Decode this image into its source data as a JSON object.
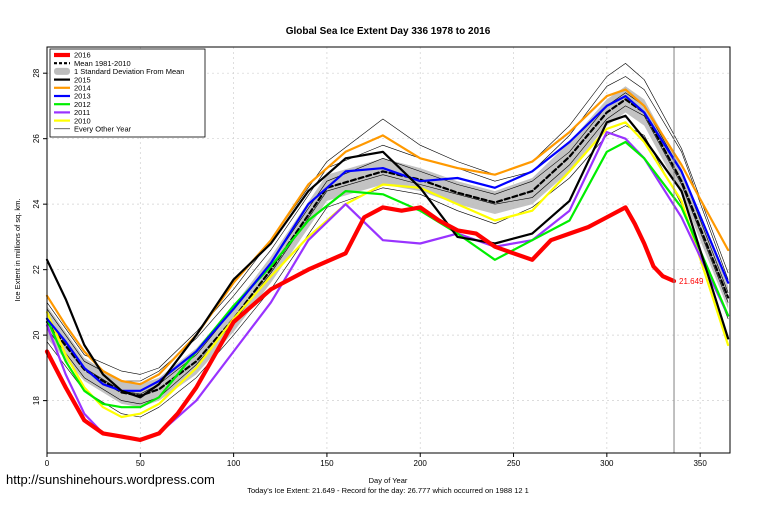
{
  "chart_data": {
    "type": "line",
    "title": "Global Sea Ice Extent Day 336 1978 to 2016",
    "xlabel": "Day of Year",
    "ylabel": "Ice Extent in millions of sq. km.",
    "xlim": [
      0,
      366
    ],
    "ylim": [
      16.4,
      28.8
    ],
    "x_ticks": [
      0,
      50,
      100,
      150,
      200,
      250,
      300,
      350
    ],
    "y_ticks": [
      18,
      20,
      22,
      24,
      26,
      28
    ],
    "grid": true,
    "current_day_marker": 336,
    "annotation": {
      "label": "21.649",
      "x": 336,
      "y": 21.649,
      "color": "#ff0000"
    },
    "footer": "Today's Ice Extent: 21.649  -  Record for the day: 26.777 which occurred on 1988 12 1",
    "watermark": "http://sunshinehours.wordpress.com",
    "legend_position": "top-left",
    "legend": [
      {
        "label": "2016",
        "color": "#ff0000",
        "style": "thick"
      },
      {
        "label": "Mean 1981-2010",
        "color": "#000000",
        "style": "dashed"
      },
      {
        "label": "1 Standard Deviation From Mean",
        "color": "#bdbdbd",
        "style": "band"
      },
      {
        "label": "2015",
        "color": "#000000",
        "style": "line"
      },
      {
        "label": "2014",
        "color": "#ff9900",
        "style": "line"
      },
      {
        "label": "2013",
        "color": "#0000ff",
        "style": "line"
      },
      {
        "label": "2012",
        "color": "#00ee00",
        "style": "line"
      },
      {
        "label": "2011",
        "color": "#9933ff",
        "style": "line"
      },
      {
        "label": "2010",
        "color": "#ffff00",
        "style": "line"
      },
      {
        "label": "Every Other Year",
        "color": "#000000",
        "style": "thin"
      }
    ],
    "band": {
      "x": [
        0,
        20,
        40,
        50,
        60,
        80,
        100,
        120,
        150,
        180,
        200,
        220,
        240,
        260,
        280,
        300,
        310,
        320,
        340,
        365
      ],
      "lower": [
        19.9,
        18.6,
        17.9,
        17.8,
        18.0,
        18.8,
        20.1,
        21.6,
        24.1,
        24.6,
        24.4,
        24.0,
        23.7,
        24.0,
        25.0,
        26.4,
        26.8,
        26.4,
        24.3,
        20.8
      ],
      "upper": [
        20.9,
        19.3,
        18.6,
        18.5,
        18.7,
        19.6,
        20.9,
        22.4,
        24.9,
        25.4,
        25.1,
        24.7,
        24.4,
        24.8,
        25.9,
        27.2,
        27.6,
        27.2,
        25.1,
        21.5
      ]
    },
    "series": [
      {
        "name": "Every Other Year",
        "color": "#000000",
        "style": "thin",
        "x": [
          0,
          20,
          40,
          50,
          60,
          80,
          100,
          120,
          150,
          180,
          200,
          220,
          240,
          260,
          280,
          300,
          310,
          320,
          340,
          365
        ],
        "y": [
          20.8,
          19.2,
          18.6,
          18.6,
          18.9,
          19.9,
          21.2,
          22.6,
          25.1,
          25.8,
          25.4,
          25.1,
          24.7,
          25.0,
          26.1,
          27.6,
          27.9,
          27.5,
          25.6,
          21.7
        ]
      },
      {
        "name": "Every Other Year",
        "color": "#000000",
        "style": "thin",
        "x": [
          0,
          20,
          40,
          50,
          60,
          80,
          100,
          120,
          150,
          180,
          200,
          220,
          240,
          260,
          280,
          300,
          310,
          320,
          340,
          365
        ],
        "y": [
          20.2,
          18.7,
          18.0,
          17.9,
          18.1,
          19.1,
          20.4,
          21.9,
          24.4,
          24.9,
          24.6,
          24.3,
          24.0,
          24.2,
          25.2,
          26.6,
          27.0,
          26.7,
          24.6,
          21.0
        ]
      },
      {
        "name": "Every Other Year",
        "color": "#000000",
        "style": "thin",
        "x": [
          0,
          20,
          40,
          50,
          60,
          80,
          100,
          120,
          150,
          180,
          200,
          220,
          240,
          260,
          280,
          300,
          310,
          320,
          340,
          365
        ],
        "y": [
          19.8,
          18.3,
          17.6,
          17.5,
          17.8,
          18.7,
          20.0,
          21.4,
          23.9,
          24.5,
          24.3,
          23.8,
          23.4,
          23.9,
          24.8,
          26.1,
          26.4,
          26.1,
          24.0,
          20.5
        ]
      },
      {
        "name": "Every Other Year",
        "color": "#000000",
        "style": "thin",
        "x": [
          0,
          20,
          40,
          50,
          60,
          80,
          100,
          120,
          150,
          180,
          200,
          220,
          240,
          260,
          280,
          300,
          310,
          320,
          340,
          365
        ],
        "y": [
          21.0,
          19.4,
          18.9,
          18.8,
          19.0,
          20.1,
          21.4,
          22.9,
          25.3,
          26.6,
          25.8,
          25.3,
          24.9,
          25.3,
          26.4,
          27.9,
          28.3,
          27.8,
          25.7,
          21.9
        ]
      },
      {
        "name": "Every Other Year",
        "color": "#000000",
        "style": "thin",
        "x": [
          0,
          20,
          40,
          50,
          60,
          80,
          100,
          120,
          150,
          180,
          200,
          220,
          240,
          260,
          280,
          300,
          310,
          320,
          340,
          365
        ],
        "y": [
          20.5,
          19.0,
          18.3,
          18.2,
          18.5,
          19.4,
          20.8,
          22.2,
          24.7,
          25.4,
          25.0,
          24.6,
          24.3,
          24.7,
          25.6,
          27.0,
          27.4,
          27.0,
          25.0,
          21.3
        ]
      },
      {
        "name": "Mean 1981-2010",
        "color": "#000000",
        "style": "dashed",
        "x": [
          0,
          20,
          40,
          50,
          60,
          80,
          100,
          120,
          150,
          180,
          200,
          220,
          240,
          260,
          280,
          300,
          310,
          320,
          340,
          365
        ],
        "y": [
          20.4,
          18.95,
          18.25,
          18.15,
          18.35,
          19.2,
          20.5,
          22.0,
          24.5,
          25.0,
          24.75,
          24.35,
          24.05,
          24.4,
          25.45,
          26.8,
          27.2,
          26.8,
          24.7,
          21.15
        ]
      },
      {
        "name": "2010",
        "color": "#ffff00",
        "style": "line",
        "x": [
          0,
          10,
          20,
          30,
          40,
          50,
          60,
          80,
          100,
          120,
          140,
          160,
          180,
          200,
          220,
          240,
          260,
          280,
          300,
          310,
          320,
          340,
          365
        ],
        "y": [
          20.7,
          19.4,
          18.4,
          17.8,
          17.5,
          17.6,
          17.9,
          19.0,
          20.5,
          21.8,
          23.0,
          24.0,
          24.6,
          24.5,
          24.0,
          23.5,
          23.8,
          25.0,
          26.3,
          26.5,
          25.9,
          24.1,
          19.7
        ]
      },
      {
        "name": "2011",
        "color": "#9933ff",
        "style": "line",
        "x": [
          0,
          10,
          20,
          30,
          40,
          50,
          60,
          80,
          100,
          120,
          140,
          160,
          180,
          200,
          220,
          240,
          260,
          280,
          300,
          310,
          320,
          340,
          365
        ],
        "y": [
          20.3,
          18.8,
          17.6,
          17.0,
          16.9,
          16.8,
          17.0,
          18.0,
          19.5,
          21.0,
          22.9,
          24.0,
          22.9,
          22.8,
          23.1,
          22.7,
          22.9,
          23.8,
          26.2,
          26.0,
          25.4,
          23.6,
          20.6
        ]
      },
      {
        "name": "2012",
        "color": "#00ee00",
        "style": "line",
        "x": [
          0,
          10,
          20,
          30,
          40,
          50,
          60,
          80,
          100,
          120,
          140,
          160,
          180,
          200,
          220,
          240,
          260,
          280,
          300,
          310,
          320,
          340,
          365
        ],
        "y": [
          20.5,
          19.2,
          18.3,
          17.9,
          17.8,
          17.8,
          18.1,
          19.5,
          20.9,
          22.1,
          23.5,
          24.4,
          24.3,
          23.8,
          23.1,
          22.3,
          22.9,
          23.5,
          25.6,
          25.9,
          25.4,
          23.9,
          20.6
        ]
      },
      {
        "name": "2013",
        "color": "#0000ff",
        "style": "line",
        "x": [
          0,
          10,
          20,
          30,
          40,
          50,
          60,
          80,
          100,
          120,
          140,
          160,
          180,
          200,
          220,
          240,
          260,
          280,
          300,
          310,
          320,
          340,
          365
        ],
        "y": [
          20.5,
          19.8,
          19.0,
          18.5,
          18.3,
          18.3,
          18.6,
          19.5,
          20.8,
          22.2,
          24.0,
          25.0,
          25.1,
          24.7,
          24.8,
          24.5,
          25.0,
          25.9,
          27.0,
          27.3,
          26.8,
          25.0,
          21.6
        ]
      },
      {
        "name": "2014",
        "color": "#ff9900",
        "style": "line",
        "x": [
          0,
          10,
          20,
          30,
          40,
          50,
          60,
          80,
          100,
          120,
          140,
          160,
          180,
          200,
          220,
          240,
          260,
          280,
          300,
          310,
          320,
          340,
          365
        ],
        "y": [
          21.2,
          20.3,
          19.5,
          18.9,
          18.6,
          18.5,
          18.8,
          20.0,
          21.6,
          22.9,
          24.6,
          25.6,
          26.1,
          25.4,
          25.1,
          24.9,
          25.3,
          26.2,
          27.3,
          27.5,
          27.0,
          25.2,
          22.6
        ]
      },
      {
        "name": "2015",
        "color": "#000000",
        "style": "line",
        "x": [
          0,
          10,
          20,
          30,
          40,
          50,
          60,
          80,
          100,
          120,
          140,
          160,
          180,
          200,
          220,
          240,
          260,
          280,
          300,
          310,
          320,
          340,
          365
        ],
        "y": [
          22.3,
          21.1,
          19.7,
          18.8,
          18.3,
          18.1,
          18.5,
          20.0,
          21.7,
          22.8,
          24.4,
          25.4,
          25.6,
          24.5,
          23.0,
          22.8,
          23.1,
          24.1,
          26.5,
          26.7,
          26.0,
          24.4,
          19.9
        ]
      },
      {
        "name": "2016",
        "color": "#ff0000",
        "style": "thick",
        "x": [
          0,
          10,
          20,
          30,
          40,
          50,
          60,
          70,
          80,
          100,
          120,
          140,
          160,
          170,
          180,
          190,
          200,
          210,
          220,
          230,
          240,
          250,
          260,
          270,
          280,
          290,
          300,
          310,
          315,
          320,
          325,
          330,
          336
        ],
        "y": [
          19.5,
          18.4,
          17.4,
          17.0,
          16.9,
          16.8,
          17.0,
          17.6,
          18.4,
          20.4,
          21.4,
          22.0,
          22.5,
          23.6,
          23.9,
          23.8,
          23.9,
          23.5,
          23.2,
          23.1,
          22.7,
          22.5,
          22.3,
          22.9,
          23.1,
          23.3,
          23.6,
          23.9,
          23.4,
          22.8,
          22.1,
          21.8,
          21.649
        ]
      }
    ]
  }
}
